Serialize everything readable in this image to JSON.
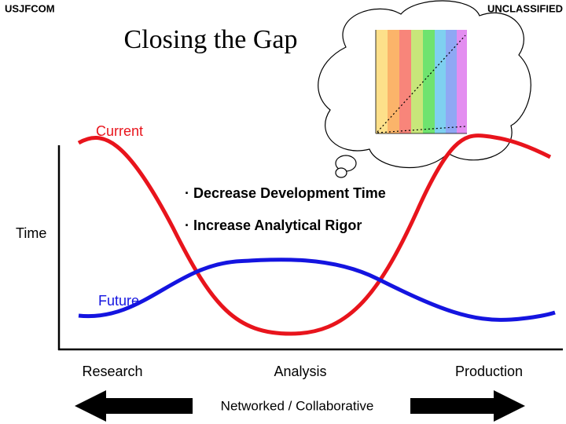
{
  "header": {
    "left": "USJFCOM",
    "right": "UNCLASSIFIED"
  },
  "title": "Closing the Gap",
  "curves": {
    "current": "Current",
    "future": "Future"
  },
  "y_axis_label": "Time",
  "bullets": [
    "· Decrease Development Time",
    "· Increase Analytical Rigor"
  ],
  "x_labels": [
    "Research",
    "Analysis",
    "Production"
  ],
  "footer_arrow": "Networked / Collaborative"
}
